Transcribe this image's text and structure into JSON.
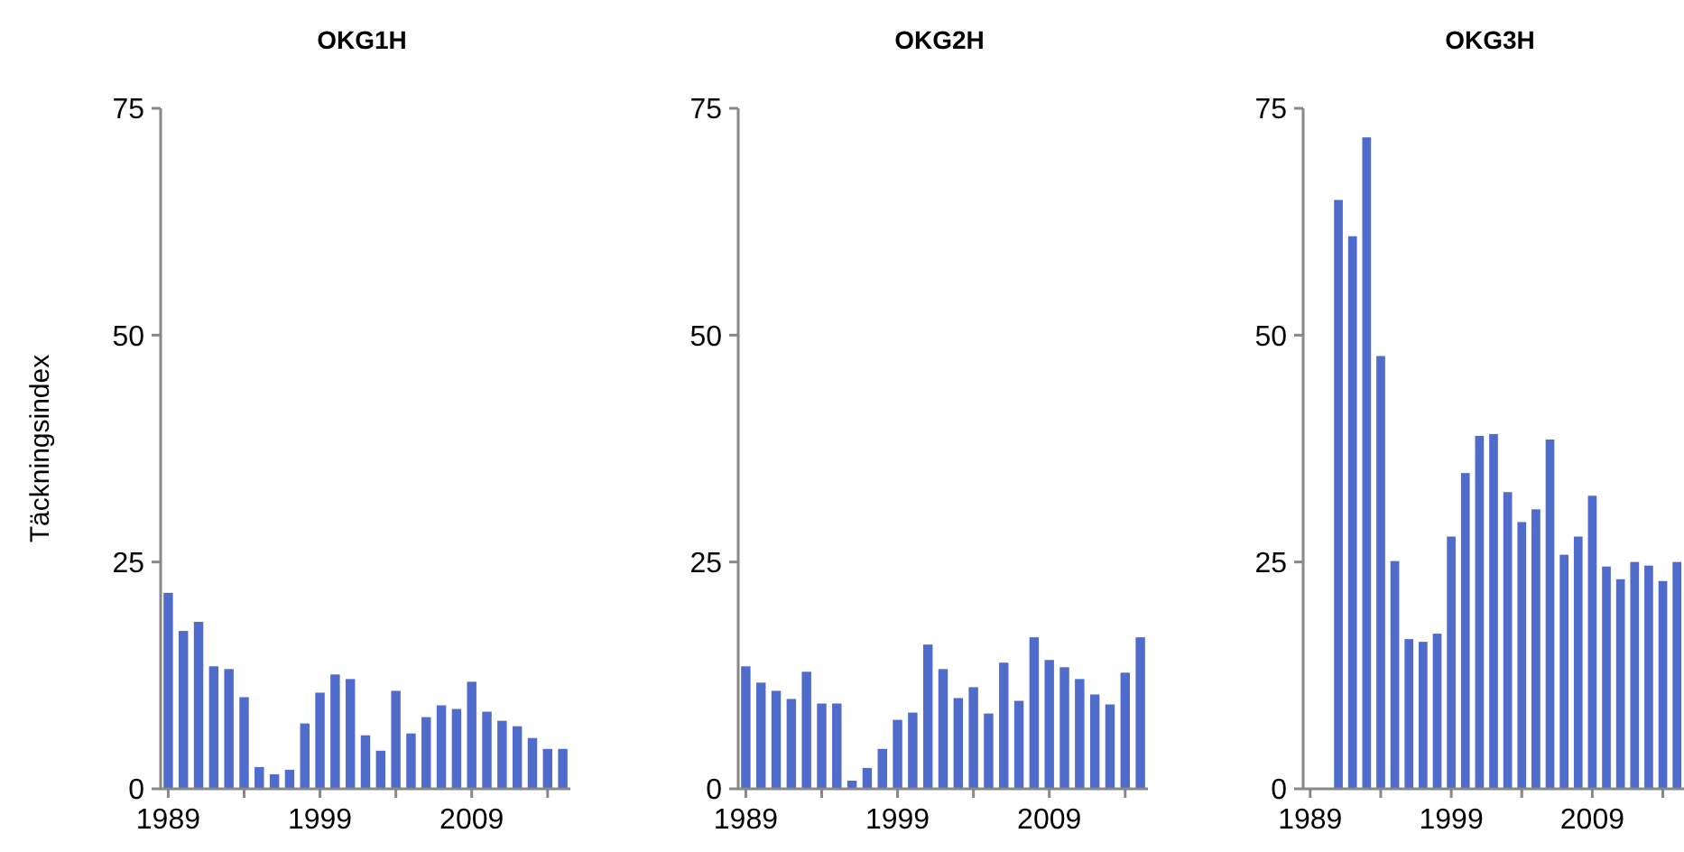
{
  "chart_data": [
    {
      "type": "bar",
      "title": "OKG1H",
      "ylabel": "Täckningsindex",
      "x": [
        1989,
        1990,
        1991,
        1992,
        1993,
        1994,
        1995,
        1996,
        1997,
        1998,
        1999,
        2000,
        2001,
        2002,
        2003,
        2004,
        2005,
        2006,
        2007,
        2008,
        2009,
        2010,
        2011,
        2012,
        2013,
        2014,
        2015
      ],
      "values": [
        21.6,
        17.4,
        18.4,
        13.5,
        13.2,
        10.1,
        2.4,
        1.6,
        2.1,
        7.2,
        10.6,
        12.6,
        12.1,
        5.9,
        4.2,
        10.8,
        6.1,
        7.9,
        9.2,
        8.8,
        11.8,
        8.5,
        7.5,
        6.9,
        5.6,
        4.4,
        4.4
      ],
      "color": "#4f6bcc",
      "xlim": [
        1988.5,
        2015.5
      ],
      "xticks": [
        1989,
        {
          "value": 1994,
          "label": null
        },
        1999,
        {
          "value": 2004,
          "label": null
        },
        2009,
        {
          "value": 2014,
          "label": null
        }
      ],
      "ylim": [
        0,
        75
      ],
      "yticks": [
        0,
        25,
        50,
        75
      ]
    },
    {
      "type": "bar",
      "title": "OKG2H",
      "x": [
        1989,
        1990,
        1991,
        1992,
        1993,
        1994,
        1995,
        1996,
        1997,
        1998,
        1999,
        2000,
        2001,
        2002,
        2003,
        2004,
        2005,
        2006,
        2007,
        2008,
        2009,
        2010,
        2011,
        2012,
        2013,
        2014,
        2015
      ],
      "values": [
        13.5,
        11.7,
        10.8,
        9.9,
        12.9,
        9.4,
        9.4,
        0.9,
        2.3,
        4.4,
        7.6,
        8.4,
        15.9,
        13.2,
        10.0,
        11.2,
        8.3,
        13.9,
        9.7,
        16.7,
        14.2,
        13.4,
        12.1,
        10.4,
        9.3,
        12.8,
        16.7
      ],
      "color": "#4f6bcc",
      "xlim": [
        1988.5,
        2015.5
      ],
      "xticks": [
        1989,
        {
          "value": 1994,
          "label": null
        },
        1999,
        {
          "value": 2004,
          "label": null
        },
        2009,
        {
          "value": 2014,
          "label": null
        }
      ],
      "ylim": [
        0,
        75
      ],
      "yticks": [
        0,
        25,
        50,
        75
      ]
    },
    {
      "type": "bar",
      "title": "OKG3H",
      "x": [
        1991,
        1992,
        1993,
        1994,
        1995,
        1996,
        1997,
        1998,
        1999,
        2000,
        2001,
        2002,
        2003,
        2004,
        2005,
        2006,
        2007,
        2008,
        2009,
        2010,
        2011,
        2012,
        2013,
        2014,
        2015
      ],
      "values": [
        64.9,
        60.9,
        71.8,
        47.7,
        25.1,
        16.5,
        16.2,
        17.1,
        27.8,
        34.8,
        38.9,
        39.1,
        32.7,
        29.4,
        30.8,
        38.5,
        25.8,
        27.8,
        32.3,
        24.5,
        23.1,
        25.0,
        24.6,
        22.9,
        25.0
      ],
      "color": "#4f6bcc",
      "xlim": [
        1988.5,
        2015.5
      ],
      "xticks": [
        1989,
        {
          "value": 1994,
          "label": null
        },
        1999,
        {
          "value": 2004,
          "label": null
        },
        2009,
        {
          "value": 2014,
          "label": null
        }
      ],
      "ylim": [
        0,
        75
      ],
      "yticks": [
        0,
        25,
        50,
        75
      ]
    }
  ]
}
